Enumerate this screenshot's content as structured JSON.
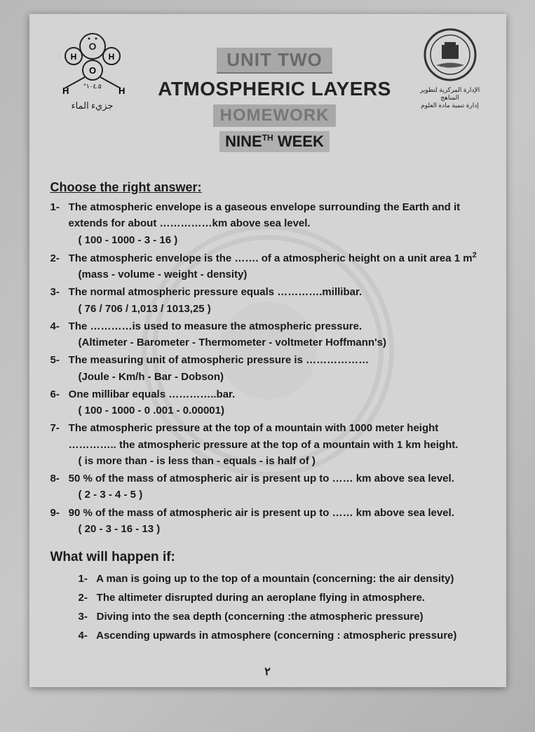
{
  "header": {
    "molecule_caption": "جزيء الماء",
    "angle_label": "°١٠٤.٥",
    "logo_caption_1": "الإدارة المركزية لتطوير المناهج",
    "logo_caption_2": "إدارة تنمية مادة العلوم",
    "unit_line": "UNIT TWO",
    "main_title": "ATMOSPHERIC LAYERS",
    "hw_line": "HOMEWORK",
    "week_prefix": "NINE",
    "week_sup": "TH",
    "week_suffix": " WEEK"
  },
  "section1": {
    "heading": "Choose the right answer:",
    "questions": [
      {
        "n": "1-",
        "text": "The atmospheric envelope is a gaseous envelope surrounding the Earth and it",
        "cont": "extends for about ……………km above sea level.",
        "opts": "( 100    -    1000    -    3    -    16 )"
      },
      {
        "n": "2-",
        "text": "The atmospheric envelope is the ……. of a atmospheric height on a unit area 1 m",
        "opts": "(mass    -    volume    -    weight    -    density)"
      },
      {
        "n": "3-",
        "text": "The normal atmospheric pressure equals ………….millibar.",
        "opts": "(  76  /   706   /   1,013   /   1013,25  )"
      },
      {
        "n": "4-",
        "text": "The …………is used to measure the atmospheric pressure.",
        "opts": "(Altimeter   -    Barometer   -   Thermometer    -    voltmeter Hoffmann's)"
      },
      {
        "n": "5-",
        "text": "The measuring unit of atmospheric pressure is ………………",
        "opts": "(Joule    -    Km/h     -    Bar      -    Dobson)"
      },
      {
        "n": "6-",
        "text": "One millibar equals …………..bar.",
        "opts": "( 100      -     1000     -      0 .001      -     0.00001)"
      },
      {
        "n": "7-",
        "text": "The atmospheric pressure at the top of a mountain with 1000 meter height",
        "cont": "………….. the atmospheric pressure at the top of a mountain with 1 km height.",
        "opts": "( is more than     -       is less than     -     equals      -    is half of )"
      },
      {
        "n": "8-",
        "text": "50 % of the mass of atmospheric air is present up to …… km above sea level.",
        "opts": "(  2         -        3       -        4       -       5   )"
      },
      {
        "n": "9-",
        "text": "90 % of the mass of atmospheric air is present up to …… km above sea level.",
        "opts": "(  20        -       3       -        16       -        13  )"
      }
    ]
  },
  "section2": {
    "heading": "What will happen if:",
    "items": [
      {
        "n": "1-",
        "text": "A man is going up to the top of a mountain (concerning: the air density)"
      },
      {
        "n": "2-",
        "text": "The altimeter disrupted during an aeroplane flying in atmosphere."
      },
      {
        "n": "3-",
        "text": "Diving into the sea depth (concerning :the atmospheric pressure)"
      },
      {
        "n": "4-",
        "text": "Ascending upwards in atmosphere (concerning : atmospheric pressure)"
      }
    ]
  },
  "page_number": "٢"
}
